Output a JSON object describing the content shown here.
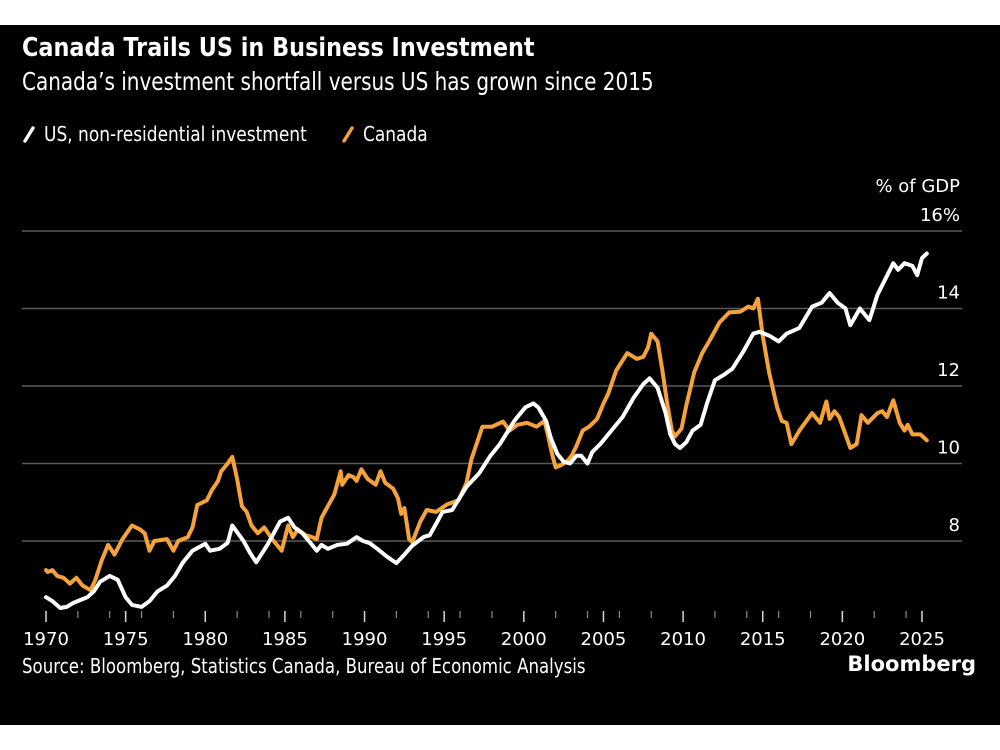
{
  "header": {
    "title": "Canada Trails US in Business Investment",
    "subtitle": "Canada’s investment shortfall versus US has grown since 2015"
  },
  "legend": [
    {
      "label": "US, non-residential investment",
      "icon": "slash-line-icon",
      "color": "#ffffff"
    },
    {
      "label": "Canada",
      "icon": "slash-line-icon",
      "color": "#f5a23a"
    }
  ],
  "footer": {
    "source": "Source: Bloomberg, Statistics Canada, Bureau of Economic Analysis",
    "brand": "Bloomberg"
  },
  "chart_data": {
    "type": "line",
    "title": "Canada Trails US in Business Investment",
    "subtitle": "Canada’s investment shortfall versus US has grown since 2015",
    "xlabel": "",
    "ylabel": "% of GDP",
    "xlim": [
      1970,
      2025.5
    ],
    "ylim": [
      5.9,
      16
    ],
    "y_ticks": [
      8,
      10,
      12,
      14,
      16
    ],
    "y_tick_labels": [
      "8",
      "10",
      "12",
      "14",
      "16%"
    ],
    "x_ticks": [
      1970,
      1975,
      1980,
      1985,
      1990,
      1995,
      2000,
      2005,
      2010,
      2015,
      2020,
      2025
    ],
    "x_tick_labels": [
      "1970",
      "1975",
      "1980",
      "1985",
      "1990",
      "1995",
      "2000",
      "2005",
      "2010",
      "2015",
      "2020",
      "2025"
    ],
    "grid": "horizontal",
    "y_axis_side": "right",
    "legend_position": "top-left",
    "series": [
      {
        "name": "US, non-residential investment",
        "color": "#ffffff",
        "points": [
          [
            1970.0,
            6.55
          ],
          [
            1970.4,
            6.45
          ],
          [
            1970.9,
            6.27
          ],
          [
            1971.3,
            6.3
          ],
          [
            1971.7,
            6.4
          ],
          [
            1972.3,
            6.5
          ],
          [
            1972.6,
            6.55
          ],
          [
            1973.0,
            6.7
          ],
          [
            1973.4,
            6.95
          ],
          [
            1974.0,
            7.1
          ],
          [
            1974.5,
            7.0
          ],
          [
            1975.0,
            6.55
          ],
          [
            1975.4,
            6.35
          ],
          [
            1976.0,
            6.3
          ],
          [
            1976.5,
            6.45
          ],
          [
            1977.0,
            6.7
          ],
          [
            1977.6,
            6.85
          ],
          [
            1978.1,
            7.1
          ],
          [
            1978.6,
            7.45
          ],
          [
            1979.2,
            7.75
          ],
          [
            1980.0,
            7.93
          ],
          [
            1980.3,
            7.75
          ],
          [
            1980.9,
            7.8
          ],
          [
            1981.4,
            7.95
          ],
          [
            1981.7,
            8.4
          ],
          [
            1982.4,
            8.0
          ],
          [
            1982.8,
            7.7
          ],
          [
            1983.2,
            7.45
          ],
          [
            1983.9,
            7.9
          ],
          [
            1984.7,
            8.5
          ],
          [
            1985.2,
            8.6
          ],
          [
            1985.6,
            8.35
          ],
          [
            1986.1,
            8.2
          ],
          [
            1986.6,
            7.95
          ],
          [
            1987.0,
            7.75
          ],
          [
            1987.3,
            7.9
          ],
          [
            1987.7,
            7.8
          ],
          [
            1988.3,
            7.9
          ],
          [
            1988.9,
            7.93
          ],
          [
            1989.5,
            8.1
          ],
          [
            1989.9,
            8.0
          ],
          [
            1990.3,
            7.95
          ],
          [
            1990.8,
            7.8
          ],
          [
            1991.4,
            7.6
          ],
          [
            1992.0,
            7.43
          ],
          [
            1992.5,
            7.65
          ],
          [
            1993.0,
            7.88
          ],
          [
            1993.7,
            8.1
          ],
          [
            1994.1,
            8.15
          ],
          [
            1994.9,
            8.75
          ],
          [
            1995.5,
            8.8
          ],
          [
            1996.4,
            9.4
          ],
          [
            1997.2,
            9.75
          ],
          [
            1997.9,
            10.2
          ],
          [
            1998.5,
            10.5
          ],
          [
            1999.4,
            11.1
          ],
          [
            2000.1,
            11.45
          ],
          [
            2000.6,
            11.55
          ],
          [
            2000.9,
            11.45
          ],
          [
            2001.4,
            11.1
          ],
          [
            2001.7,
            10.65
          ],
          [
            2002.1,
            10.25
          ],
          [
            2002.5,
            10.05
          ],
          [
            2002.9,
            10.0
          ],
          [
            2003.3,
            10.2
          ],
          [
            2003.6,
            10.2
          ],
          [
            2004.0,
            10.0
          ],
          [
            2004.3,
            10.3
          ],
          [
            2004.8,
            10.5
          ],
          [
            2005.4,
            10.8
          ],
          [
            2006.2,
            11.2
          ],
          [
            2006.9,
            11.7
          ],
          [
            2007.5,
            12.05
          ],
          [
            2007.9,
            12.2
          ],
          [
            2008.4,
            11.95
          ],
          [
            2008.9,
            11.3
          ],
          [
            2009.2,
            10.75
          ],
          [
            2009.5,
            10.5
          ],
          [
            2009.8,
            10.4
          ],
          [
            2010.2,
            10.55
          ],
          [
            2010.6,
            10.85
          ],
          [
            2011.1,
            11.0
          ],
          [
            2011.5,
            11.55
          ],
          [
            2012.0,
            12.15
          ],
          [
            2012.6,
            12.3
          ],
          [
            2013.1,
            12.45
          ],
          [
            2013.8,
            12.9
          ],
          [
            2014.4,
            13.35
          ],
          [
            2014.8,
            13.4
          ],
          [
            2015.4,
            13.3
          ],
          [
            2016.0,
            13.15
          ],
          [
            2016.5,
            13.35
          ],
          [
            2017.3,
            13.5
          ],
          [
            2018.1,
            14.05
          ],
          [
            2018.7,
            14.15
          ],
          [
            2019.2,
            14.4
          ],
          [
            2019.7,
            14.15
          ],
          [
            2020.2,
            14.0
          ],
          [
            2020.5,
            13.57
          ],
          [
            2021.1,
            14.0
          ],
          [
            2021.7,
            13.7
          ],
          [
            2022.2,
            14.35
          ],
          [
            2022.5,
            14.6
          ],
          [
            2023.2,
            15.17
          ],
          [
            2023.5,
            15.0
          ],
          [
            2023.9,
            15.17
          ],
          [
            2024.4,
            15.1
          ],
          [
            2024.7,
            14.86
          ],
          [
            2025.0,
            15.3
          ],
          [
            2025.3,
            15.42
          ]
        ]
      },
      {
        "name": "Canada",
        "color": "#f5a23a",
        "points": [
          [
            1970.0,
            7.25
          ],
          [
            1970.1,
            7.2
          ],
          [
            1970.4,
            7.25
          ],
          [
            1970.7,
            7.1
          ],
          [
            1971.1,
            7.05
          ],
          [
            1971.5,
            6.9
          ],
          [
            1971.9,
            7.05
          ],
          [
            1972.3,
            6.85
          ],
          [
            1972.8,
            6.73
          ],
          [
            1973.1,
            7.0
          ],
          [
            1973.5,
            7.5
          ],
          [
            1973.9,
            7.9
          ],
          [
            1974.3,
            7.65
          ],
          [
            1974.8,
            8.05
          ],
          [
            1975.4,
            8.4
          ],
          [
            1975.9,
            8.3
          ],
          [
            1976.2,
            8.2
          ],
          [
            1976.5,
            7.75
          ],
          [
            1976.8,
            8.0
          ],
          [
            1977.6,
            8.05
          ],
          [
            1978.0,
            7.75
          ],
          [
            1978.3,
            8.0
          ],
          [
            1978.9,
            8.1
          ],
          [
            1979.2,
            8.35
          ],
          [
            1979.5,
            8.93
          ],
          [
            1980.1,
            9.05
          ],
          [
            1980.4,
            9.3
          ],
          [
            1980.8,
            9.55
          ],
          [
            1981.0,
            9.8
          ],
          [
            1981.4,
            10.0
          ],
          [
            1981.7,
            10.17
          ],
          [
            1982.0,
            9.6
          ],
          [
            1982.3,
            8.9
          ],
          [
            1982.6,
            8.75
          ],
          [
            1982.9,
            8.4
          ],
          [
            1983.3,
            8.2
          ],
          [
            1983.7,
            8.35
          ],
          [
            1984.2,
            8.05
          ],
          [
            1984.8,
            7.75
          ],
          [
            1985.2,
            8.4
          ],
          [
            1985.5,
            8.1
          ],
          [
            1985.8,
            8.3
          ],
          [
            1986.3,
            8.15
          ],
          [
            1986.7,
            8.1
          ],
          [
            1987.0,
            8.05
          ],
          [
            1987.3,
            8.6
          ],
          [
            1987.7,
            8.9
          ],
          [
            1988.1,
            9.2
          ],
          [
            1988.5,
            9.8
          ],
          [
            1988.6,
            9.45
          ],
          [
            1989.0,
            9.7
          ],
          [
            1989.3,
            9.65
          ],
          [
            1989.5,
            9.55
          ],
          [
            1989.8,
            9.85
          ],
          [
            1990.2,
            9.6
          ],
          [
            1990.7,
            9.45
          ],
          [
            1991.0,
            9.8
          ],
          [
            1991.3,
            9.5
          ],
          [
            1991.8,
            9.35
          ],
          [
            1992.1,
            9.1
          ],
          [
            1992.3,
            8.7
          ],
          [
            1992.5,
            8.85
          ],
          [
            1992.8,
            8.05
          ],
          [
            1993.0,
            7.97
          ],
          [
            1993.5,
            8.5
          ],
          [
            1993.9,
            8.8
          ],
          [
            1994.5,
            8.75
          ],
          [
            1995.2,
            8.95
          ],
          [
            1995.9,
            9.05
          ],
          [
            1996.4,
            9.5
          ],
          [
            1996.7,
            10.1
          ],
          [
            1997.4,
            10.95
          ],
          [
            1998.0,
            10.95
          ],
          [
            1998.7,
            11.08
          ],
          [
            1999.1,
            10.85
          ],
          [
            1999.6,
            11.0
          ],
          [
            2000.2,
            11.05
          ],
          [
            2000.8,
            10.95
          ],
          [
            2001.3,
            11.1
          ],
          [
            2001.5,
            10.75
          ],
          [
            2001.8,
            10.2
          ],
          [
            2002.0,
            9.9
          ],
          [
            2002.3,
            9.95
          ],
          [
            2002.7,
            10.05
          ],
          [
            2003.0,
            10.2
          ],
          [
            2003.3,
            10.45
          ],
          [
            2003.7,
            10.85
          ],
          [
            2004.1,
            10.95
          ],
          [
            2004.6,
            11.15
          ],
          [
            2005.0,
            11.55
          ],
          [
            2005.3,
            11.8
          ],
          [
            2005.8,
            12.4
          ],
          [
            2006.5,
            12.85
          ],
          [
            2007.1,
            12.7
          ],
          [
            2007.5,
            12.75
          ],
          [
            2007.8,
            13.0
          ],
          [
            2008.0,
            13.35
          ],
          [
            2008.4,
            13.15
          ],
          [
            2008.7,
            12.4
          ],
          [
            2009.0,
            11.55
          ],
          [
            2009.3,
            10.85
          ],
          [
            2009.5,
            10.7
          ],
          [
            2009.9,
            10.9
          ],
          [
            2010.2,
            11.5
          ],
          [
            2010.7,
            12.35
          ],
          [
            2011.2,
            12.85
          ],
          [
            2011.7,
            13.2
          ],
          [
            2012.3,
            13.65
          ],
          [
            2012.9,
            13.9
          ],
          [
            2013.6,
            13.92
          ],
          [
            2014.1,
            14.05
          ],
          [
            2014.4,
            14.0
          ],
          [
            2014.7,
            14.25
          ],
          [
            2015.0,
            13.3
          ],
          [
            2015.4,
            12.35
          ],
          [
            2015.9,
            11.45
          ],
          [
            2016.2,
            11.1
          ],
          [
            2016.5,
            11.05
          ],
          [
            2016.8,
            10.5
          ],
          [
            2017.3,
            10.85
          ],
          [
            2018.1,
            11.3
          ],
          [
            2018.6,
            11.05
          ],
          [
            2019.0,
            11.6
          ],
          [
            2019.2,
            11.15
          ],
          [
            2019.5,
            11.35
          ],
          [
            2019.8,
            11.2
          ],
          [
            2020.2,
            10.75
          ],
          [
            2020.5,
            10.4
          ],
          [
            2020.9,
            10.5
          ],
          [
            2021.2,
            11.25
          ],
          [
            2021.6,
            11.05
          ],
          [
            2022.2,
            11.3
          ],
          [
            2022.5,
            11.35
          ],
          [
            2022.8,
            11.2
          ],
          [
            2023.2,
            11.63
          ],
          [
            2023.6,
            11.05
          ],
          [
            2023.9,
            10.85
          ],
          [
            2024.1,
            11.0
          ],
          [
            2024.4,
            10.75
          ],
          [
            2024.9,
            10.75
          ],
          [
            2025.3,
            10.6
          ]
        ]
      }
    ]
  }
}
